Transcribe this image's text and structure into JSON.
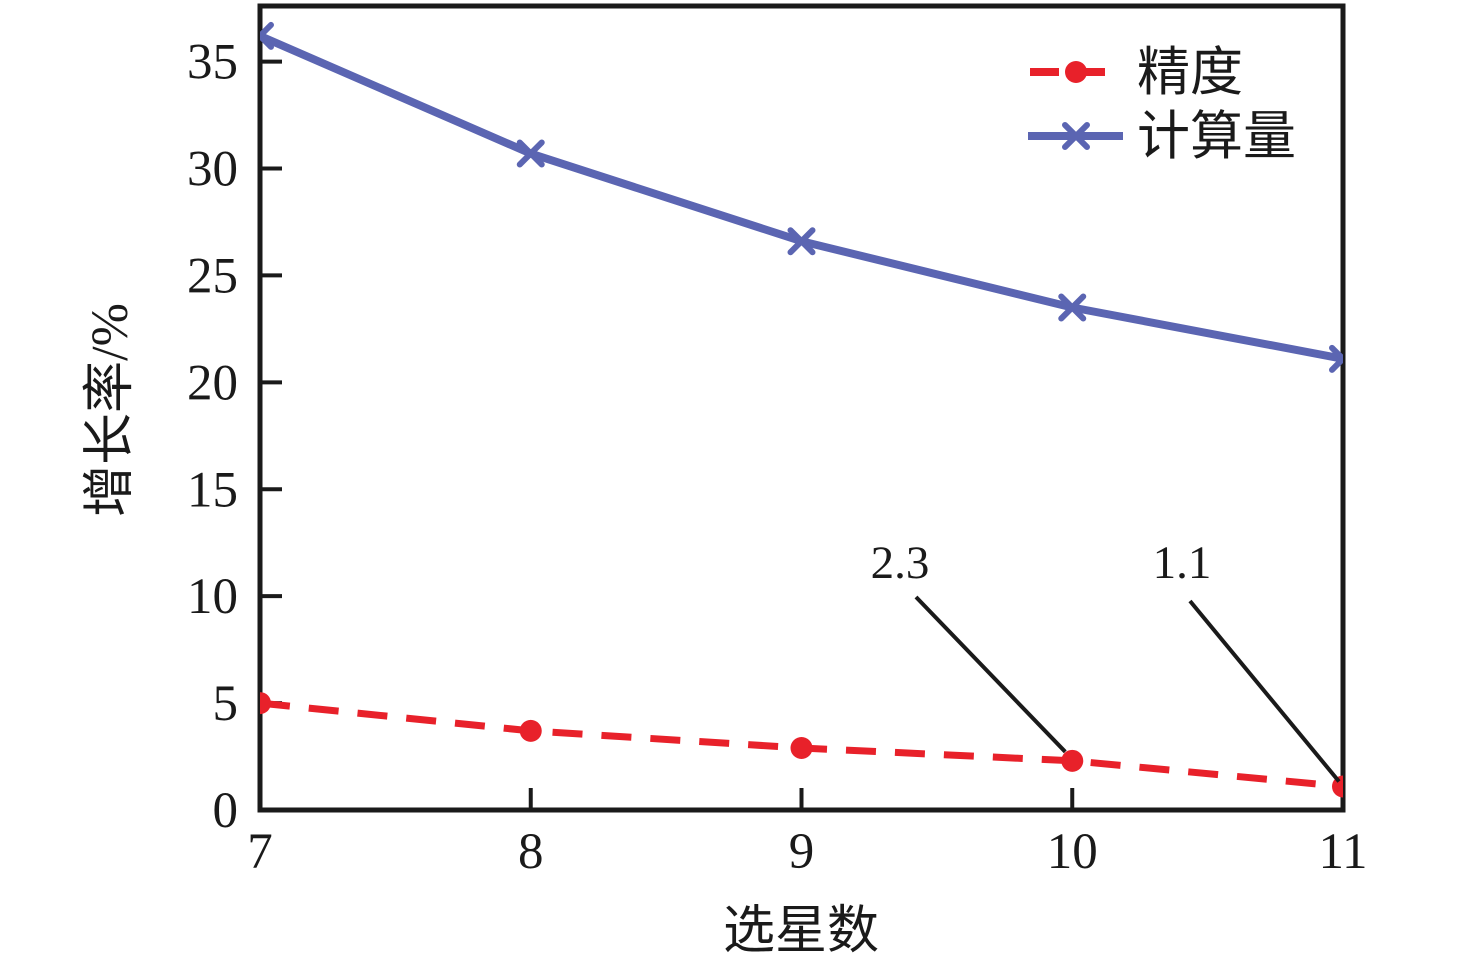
{
  "chart_data": {
    "type": "line",
    "title": "",
    "xlabel": "选星数",
    "ylabel": "增长率/%",
    "x": [
      7,
      8,
      9,
      10,
      11
    ],
    "x_tick_labels": [
      "7",
      "8",
      "9",
      "10",
      "11"
    ],
    "y_ticks": [
      0,
      5,
      10,
      15,
      20,
      25,
      30,
      35
    ],
    "y_tick_labels": [
      "0",
      "5",
      "10",
      "15",
      "20",
      "25",
      "30",
      "35"
    ],
    "xlim": [
      7,
      11
    ],
    "ylim": [
      0,
      37.6
    ],
    "grid": false,
    "legend_position": "top-right-inside",
    "frame": "full-box",
    "tick_direction": "in",
    "axis_color": "#1a1a1a",
    "background_color": "#ffffff",
    "series": [
      {
        "name": "精度",
        "color": "#e8212a",
        "line_style": "dashed",
        "marker": "circle",
        "values": [
          5.0,
          3.7,
          2.9,
          2.3,
          1.1
        ]
      },
      {
        "name": "计算量",
        "color": "#5b65b2",
        "line_style": "solid",
        "marker": "x",
        "values": [
          36.2,
          30.7,
          26.6,
          23.5,
          21.1
        ]
      }
    ],
    "annotations": [
      {
        "label": "2.3",
        "target_x": 10,
        "target_y": 2.3
      },
      {
        "label": "1.1",
        "target_x": 11,
        "target_y": 1.1
      }
    ]
  }
}
